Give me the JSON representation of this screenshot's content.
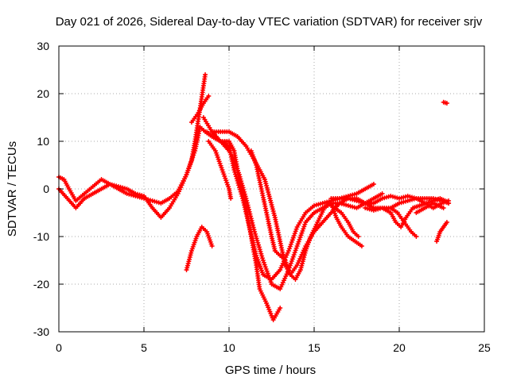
{
  "chart_data": {
    "type": "scatter",
    "title": "Day 021 of 2026, Sidereal Day-to-day VTEC variation (SDTVAR) for receiver srjv",
    "xlabel": "GPS time / hours",
    "ylabel": "SDTVAR / TECUs",
    "xlim": [
      0,
      25
    ],
    "ylim": [
      -30,
      30
    ],
    "xticks": [
      0,
      5,
      10,
      15,
      20,
      25
    ],
    "yticks": [
      -30,
      -20,
      -10,
      0,
      10,
      20,
      30
    ],
    "xtick_labels": [
      "0",
      "5",
      "10",
      "15",
      "20",
      "25"
    ],
    "ytick_labels": [
      "-30",
      "-20",
      "-10",
      "0",
      "10",
      "20",
      "30"
    ],
    "grid": true,
    "marker": "+",
    "color": "#ff0000",
    "series": [
      {
        "name": "track-1",
        "points": [
          [
            0,
            2.5
          ],
          [
            0.3,
            2
          ],
          [
            0.6,
            0
          ],
          [
            1,
            -2.5
          ],
          [
            1.5,
            -1
          ],
          [
            2,
            0.5
          ],
          [
            2.5,
            2
          ],
          [
            3,
            1
          ],
          [
            3.5,
            0
          ],
          [
            4,
            -1
          ],
          [
            4.5,
            -1.5
          ],
          [
            5,
            -2
          ],
          [
            5.5,
            -2.5
          ],
          [
            6,
            -3
          ],
          [
            6.5,
            -2
          ],
          [
            7,
            -0.5
          ],
          [
            7.5,
            3
          ],
          [
            8,
            8
          ],
          [
            8.3,
            13
          ],
          [
            8.6,
            12
          ],
          [
            9,
            11
          ],
          [
            9.5,
            10
          ],
          [
            10,
            9
          ],
          [
            10.3,
            4
          ],
          [
            10.8,
            -2
          ],
          [
            11.2,
            -8
          ],
          [
            11.6,
            -14
          ],
          [
            12,
            -18
          ],
          [
            12.5,
            -19
          ],
          [
            13,
            -17
          ],
          [
            13.5,
            -13
          ],
          [
            14,
            -8
          ],
          [
            14.5,
            -5
          ],
          [
            15,
            -3.5
          ],
          [
            15.5,
            -3
          ],
          [
            16,
            -2.5
          ],
          [
            16.5,
            -2
          ],
          [
            17,
            -1.5
          ],
          [
            17.5,
            -1
          ],
          [
            18,
            0
          ],
          [
            18.5,
            1
          ]
        ]
      },
      {
        "name": "track-2",
        "points": [
          [
            0,
            0
          ],
          [
            0.5,
            -2
          ],
          [
            1,
            -4
          ],
          [
            1.5,
            -2
          ],
          [
            2,
            -1
          ],
          [
            2.5,
            0
          ],
          [
            3,
            1
          ],
          [
            3.5,
            0.5
          ],
          [
            4,
            0
          ],
          [
            4.5,
            -1
          ],
          [
            5,
            -1.5
          ],
          [
            5.5,
            -4
          ],
          [
            6,
            -6
          ],
          [
            6.5,
            -4
          ],
          [
            7,
            -1
          ],
          [
            7.5,
            3
          ],
          [
            7.8,
            6
          ],
          [
            8,
            10
          ],
          [
            8.3,
            17
          ],
          [
            8.6,
            24
          ]
        ]
      },
      {
        "name": "track-3",
        "points": [
          [
            7.8,
            14
          ],
          [
            8.2,
            16
          ],
          [
            8.5,
            18
          ],
          [
            8.8,
            19.5
          ]
        ]
      },
      {
        "name": "track-4",
        "points": [
          [
            7.5,
            -17
          ],
          [
            7.8,
            -13
          ],
          [
            8.1,
            -10
          ],
          [
            8.4,
            -8
          ],
          [
            8.7,
            -9
          ],
          [
            9,
            -12
          ]
        ]
      },
      {
        "name": "track-5",
        "points": [
          [
            8.5,
            15
          ],
          [
            9,
            12
          ],
          [
            9.5,
            10
          ],
          [
            10,
            8
          ],
          [
            10.3,
            6
          ],
          [
            10.6,
            3
          ],
          [
            11,
            -2
          ],
          [
            11.5,
            -9
          ],
          [
            12,
            -15
          ],
          [
            12.5,
            -20
          ],
          [
            13,
            -21
          ],
          [
            13.5,
            -17
          ],
          [
            14,
            -12
          ],
          [
            14.5,
            -7
          ],
          [
            15,
            -5
          ],
          [
            15.5,
            -4
          ],
          [
            16,
            -3
          ],
          [
            16.5,
            -3
          ],
          [
            17,
            -3.5
          ],
          [
            17.5,
            -4
          ],
          [
            18,
            -3
          ],
          [
            18.5,
            -2
          ],
          [
            19,
            -1
          ]
        ]
      },
      {
        "name": "track-6",
        "points": [
          [
            8.7,
            12
          ],
          [
            9,
            11
          ],
          [
            9.5,
            10
          ],
          [
            10,
            10
          ],
          [
            10.3,
            8
          ],
          [
            10.6,
            2
          ],
          [
            11,
            -4
          ],
          [
            11.3,
            -10
          ],
          [
            11.6,
            -16
          ],
          [
            11.8,
            -21
          ],
          [
            12.2,
            -24
          ],
          [
            12.6,
            -27.5
          ],
          [
            13,
            -25
          ]
        ]
      },
      {
        "name": "track-7",
        "points": [
          [
            8.8,
            10
          ],
          [
            9.2,
            8
          ],
          [
            9.6,
            4
          ],
          [
            10,
            0
          ],
          [
            10.1,
            -2
          ]
        ]
      },
      {
        "name": "track-8",
        "points": [
          [
            9,
            12
          ],
          [
            9.5,
            12
          ],
          [
            10,
            12
          ],
          [
            10.5,
            11
          ],
          [
            11,
            9
          ],
          [
            11.5,
            6
          ],
          [
            11.8,
            4
          ],
          [
            12.1,
            2
          ],
          [
            12.4,
            -2
          ],
          [
            12.7,
            -6
          ],
          [
            13,
            -11
          ],
          [
            13.3,
            -16
          ],
          [
            13.6,
            -18
          ],
          [
            14,
            -16
          ],
          [
            14.5,
            -12
          ],
          [
            15,
            -9
          ],
          [
            15.5,
            -7
          ],
          [
            16,
            -5
          ],
          [
            16.5,
            -3
          ],
          [
            17,
            -2
          ],
          [
            17.5,
            -2
          ],
          [
            18,
            -3
          ],
          [
            18.5,
            -4
          ],
          [
            19,
            -4
          ],
          [
            19.5,
            -4
          ],
          [
            20,
            -3
          ],
          [
            20.5,
            -2.5
          ],
          [
            21,
            -2
          ],
          [
            21.5,
            -2
          ],
          [
            22,
            -2
          ],
          [
            22.5,
            -2.5
          ],
          [
            22.9,
            -3
          ]
        ]
      },
      {
        "name": "track-9",
        "points": [
          [
            11.3,
            8
          ],
          [
            11.6,
            5
          ],
          [
            11.9,
            0
          ],
          [
            12.2,
            -5
          ],
          [
            12.5,
            -10
          ],
          [
            12.7,
            -13
          ],
          [
            13,
            -14
          ],
          [
            13.3,
            -15
          ],
          [
            13.6,
            -18
          ],
          [
            13.9,
            -19
          ],
          [
            14.2,
            -17
          ],
          [
            14.5,
            -13
          ],
          [
            14.8,
            -10
          ],
          [
            15.2,
            -7
          ],
          [
            15.6,
            -4
          ],
          [
            16,
            -3
          ],
          [
            16.3,
            -6
          ],
          [
            16.6,
            -8
          ],
          [
            17,
            -10
          ],
          [
            17.4,
            -11
          ],
          [
            17.8,
            -12
          ]
        ]
      },
      {
        "name": "track-10",
        "points": [
          [
            15.8,
            -3
          ],
          [
            16.2,
            -4
          ],
          [
            16.6,
            -5
          ],
          [
            17,
            -7
          ],
          [
            17.3,
            -9
          ],
          [
            17.6,
            -10
          ]
        ]
      },
      {
        "name": "track-11",
        "points": [
          [
            16,
            -2
          ],
          [
            16.5,
            -2
          ],
          [
            17,
            -2
          ],
          [
            17.5,
            -2.5
          ],
          [
            18,
            -3
          ],
          [
            18.5,
            -3
          ],
          [
            19,
            -2
          ],
          [
            19.5,
            -1.5
          ],
          [
            20,
            -2
          ],
          [
            20.5,
            -1.5
          ],
          [
            21,
            -2
          ],
          [
            21.5,
            -3
          ],
          [
            22,
            -4
          ],
          [
            22.5,
            -3
          ],
          [
            22.9,
            -2.5
          ]
        ]
      },
      {
        "name": "track-12",
        "points": [
          [
            18,
            -4
          ],
          [
            18.5,
            -4.5
          ],
          [
            19,
            -4
          ],
          [
            19.5,
            -5
          ],
          [
            19.8,
            -7
          ],
          [
            20.1,
            -8
          ],
          [
            20.4,
            -6
          ],
          [
            20.8,
            -4
          ],
          [
            21.2,
            -3.5
          ],
          [
            21.6,
            -3
          ],
          [
            22,
            -2.5
          ],
          [
            22.4,
            -2
          ],
          [
            22.7,
            -2.5
          ],
          [
            22.9,
            -3
          ]
        ]
      },
      {
        "name": "track-13",
        "points": [
          [
            19.5,
            -4
          ],
          [
            19.9,
            -5
          ],
          [
            20.3,
            -7
          ],
          [
            20.7,
            -9
          ],
          [
            21,
            -10
          ]
        ]
      },
      {
        "name": "track-14",
        "points": [
          [
            21,
            -5
          ],
          [
            21.5,
            -4
          ],
          [
            22,
            -3
          ],
          [
            22.3,
            -3.5
          ],
          [
            22.6,
            -4
          ]
        ]
      },
      {
        "name": "track-15",
        "points": [
          [
            22.2,
            -11
          ],
          [
            22.4,
            -9
          ],
          [
            22.6,
            -8
          ],
          [
            22.8,
            -7
          ]
        ]
      },
      {
        "name": "track-16",
        "points": [
          [
            22.6,
            18.2
          ],
          [
            22.8,
            18
          ]
        ]
      }
    ]
  }
}
